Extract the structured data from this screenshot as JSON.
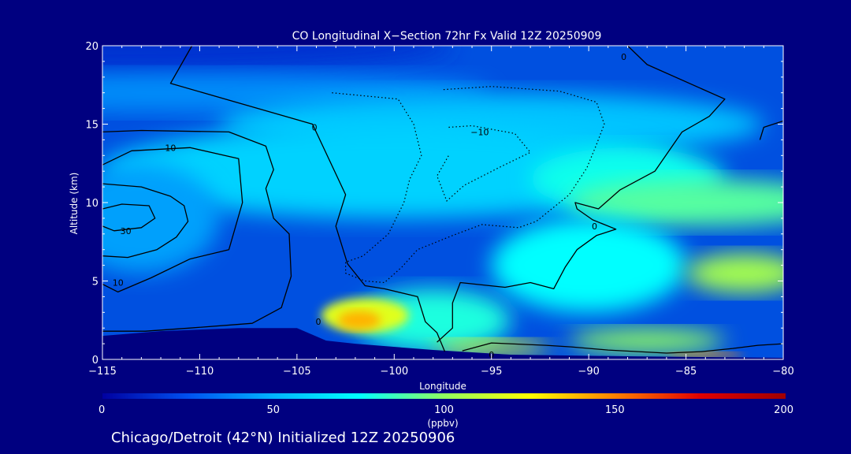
{
  "chart_data": {
    "type": "heatmap",
    "title": "CO Longitudinal X−Section 72hr  Fx Valid 12Z 20250909",
    "xlabel": "Longitude",
    "ylabel": "Altitude (km)",
    "xlim": [
      -115,
      -80
    ],
    "ylim": [
      0,
      20
    ],
    "x_ticks": [
      -115,
      -110,
      -105,
      -100,
      -95,
      -90,
      -85,
      -80
    ],
    "x_tick_labels": [
      "−115",
      "−110",
      "−105",
      "−100",
      "−95",
      "−90",
      "−85",
      "−80"
    ],
    "y_ticks": [
      0,
      5,
      10,
      15,
      20
    ],
    "y_tick_labels": [
      "0",
      "5",
      "10",
      "15",
      "20"
    ],
    "colorbar": {
      "min": 0,
      "max": 200,
      "ticks": [
        0,
        50,
        100,
        150,
        200
      ],
      "tick_labels": [
        "0",
        "50",
        "100",
        "150",
        "200"
      ],
      "unit_label": "(ppbv)",
      "colors": [
        "#0000a0",
        "#0050f0",
        "#00b4ff",
        "#00ffff",
        "#90ff60",
        "#ffff00",
        "#ff8000",
        "#e00000",
        "#a00000"
      ]
    },
    "background_color": "#000080",
    "field_base_color": "#0050e0",
    "terrain": [
      {
        "lon": -115,
        "alt": 1.5
      },
      {
        "lon": -112,
        "alt": 1.8
      },
      {
        "lon": -108,
        "alt": 2.0
      },
      {
        "lon": -105,
        "alt": 2.0
      },
      {
        "lon": -103.5,
        "alt": 1.2
      },
      {
        "lon": -102,
        "alt": 1.0
      },
      {
        "lon": -98,
        "alt": 0.6
      },
      {
        "lon": -94,
        "alt": 0.3
      },
      {
        "lon": -88,
        "alt": 0.2
      },
      {
        "lon": -84,
        "alt": 0.15
      },
      {
        "lon": -80,
        "alt": 0.1
      }
    ],
    "co_field": [
      {
        "lon": -115,
        "alt": 20.0,
        "w": 36,
        "h": 3.2,
        "value": 15
      },
      {
        "lon": -110,
        "alt": 17.0,
        "w": 30,
        "h": 2.5,
        "value": 40
      },
      {
        "lon": -95,
        "alt": 15.0,
        "w": 28,
        "h": 4.0,
        "value": 55
      },
      {
        "lon": -100,
        "alt": 12.0,
        "w": 30,
        "h": 6.0,
        "value": 60
      },
      {
        "lon": -113,
        "alt": 9.0,
        "w": 8,
        "h": 7.0,
        "value": 45
      },
      {
        "lon": -88,
        "alt": 11.5,
        "w": 10,
        "h": 4.0,
        "value": 78
      },
      {
        "lon": -84,
        "alt": 10.0,
        "w": 14,
        "h": 3.0,
        "value": 90
      },
      {
        "lon": -90,
        "alt": 6.0,
        "w": 10,
        "h": 6.0,
        "value": 75
      },
      {
        "lon": -82,
        "alt": 5.5,
        "w": 6,
        "h": 2.5,
        "value": 105
      },
      {
        "lon": -98,
        "alt": 2.5,
        "w": 8,
        "h": 4.0,
        "value": 80
      },
      {
        "lon": -101.5,
        "alt": 2.8,
        "w": 4.5,
        "h": 2.2,
        "value": 118
      },
      {
        "lon": -101.8,
        "alt": 2.5,
        "w": 2.2,
        "h": 1.2,
        "value": 140
      },
      {
        "lon": -95,
        "alt": 0.8,
        "w": 6,
        "h": 0.9,
        "value": 120
      },
      {
        "lon": -87,
        "alt": 1.2,
        "w": 8,
        "h": 1.5,
        "value": 100
      },
      {
        "lon": -84,
        "alt": 0.3,
        "w": 4,
        "h": 0.3,
        "value": 150
      }
    ],
    "contours": [
      {
        "level": 0,
        "style": "solid",
        "points": [
          [
            -110.4,
            20
          ],
          [
            -111.5,
            17.6
          ],
          [
            -104.2,
            15.0
          ],
          [
            -102.5,
            10.5
          ],
          [
            -103,
            8.5
          ],
          [
            -102.4,
            6.1
          ],
          [
            -101.5,
            4.7
          ],
          [
            -100.5,
            4.5
          ],
          [
            -98.8,
            4.0
          ],
          [
            -98.4,
            2.4
          ],
          [
            -97.8,
            1.7
          ],
          [
            -97.4,
            0.5
          ]
        ]
      },
      {
        "level": 0,
        "style": "solid",
        "points": [
          [
            -88,
            20
          ],
          [
            -87,
            18.8
          ],
          [
            -83,
            16.6
          ],
          [
            -83.8,
            15.5
          ],
          [
            -85.2,
            14.5
          ],
          [
            -86.6,
            12.0
          ],
          [
            -88.4,
            10.8
          ],
          [
            -89.5,
            9.6
          ],
          [
            -90.7,
            10.0
          ],
          [
            -90.6,
            9.6
          ],
          [
            -89.8,
            8.9
          ],
          [
            -88.6,
            8.3
          ],
          [
            -89.6,
            7.9
          ],
          [
            -90.6,
            7.0
          ],
          [
            -91.2,
            5.9
          ],
          [
            -91.8,
            4.5
          ],
          [
            -93.0,
            4.9
          ],
          [
            -94.3,
            4.6
          ],
          [
            -96.6,
            4.9
          ],
          [
            -97,
            3.6
          ],
          [
            -97,
            2.0
          ],
          [
            -97.8,
            1.1
          ]
        ]
      },
      {
        "level": 0,
        "style": "solid",
        "points": [
          [
            -80,
            15.2
          ],
          [
            -81,
            14.8
          ],
          [
            -81.2,
            14.0
          ]
        ]
      },
      {
        "level": 0,
        "style": "solid",
        "points": [
          [
            -96.5,
            0.55
          ],
          [
            -95.0,
            1.05
          ],
          [
            -92.2,
            0.9
          ],
          [
            -90.9,
            0.8
          ],
          [
            -89,
            0.6
          ],
          [
            -86,
            0.4
          ],
          [
            -84.2,
            0.5
          ],
          [
            -82.6,
            0.7
          ],
          [
            -81.3,
            0.9
          ],
          [
            -80,
            1.0
          ]
        ]
      },
      {
        "level": 10,
        "style": "solid",
        "points": [
          [
            -115,
            12.4
          ],
          [
            -113.5,
            13.3
          ],
          [
            -110.5,
            13.5
          ],
          [
            -108,
            12.8
          ],
          [
            -107.8,
            10.0
          ],
          [
            -108.5,
            7.0
          ],
          [
            -110.5,
            6.4
          ],
          [
            -112.5,
            5.2
          ],
          [
            -114.2,
            4.3
          ],
          [
            -115,
            4.8
          ]
        ]
      },
      {
        "level": 10,
        "style": "solid",
        "points": [
          [
            -115,
            14.5
          ],
          [
            -113,
            14.6
          ],
          [
            -108.5,
            14.5
          ],
          [
            -106.6,
            13.6
          ],
          [
            -106.2,
            12.1
          ],
          [
            -106.6,
            10.9
          ],
          [
            -106.2,
            9.0
          ],
          [
            -105.4,
            8.0
          ],
          [
            -105.3,
            5.3
          ],
          [
            -105.8,
            3.3
          ],
          [
            -107.3,
            2.3
          ],
          [
            -110.5,
            2.0
          ],
          [
            -112.8,
            1.8
          ],
          [
            -115,
            1.8
          ]
        ]
      },
      {
        "level": 20,
        "style": "solid",
        "points": [
          [
            -115,
            11.2
          ],
          [
            -113,
            11.0
          ],
          [
            -111.5,
            10.4
          ],
          [
            -110.8,
            9.8
          ],
          [
            -110.6,
            8.8
          ],
          [
            -111.2,
            7.8
          ],
          [
            -112.2,
            7.0
          ],
          [
            -113.7,
            6.5
          ],
          [
            -115,
            6.6
          ]
        ]
      },
      {
        "level": 30,
        "style": "solid",
        "points": [
          [
            -115,
            9.6
          ],
          [
            -114,
            9.9
          ],
          [
            -112.6,
            9.8
          ],
          [
            -112.3,
            9.0
          ],
          [
            -113,
            8.4
          ],
          [
            -114.4,
            8.2
          ],
          [
            -115,
            8.5
          ]
        ]
      },
      {
        "level": -10,
        "style": "dotted",
        "points": [
          [
            -103.2,
            17.0
          ],
          [
            -99.8,
            16.6
          ],
          [
            -99.0,
            15.0
          ],
          [
            -98.6,
            13.0
          ],
          [
            -99.2,
            11.5
          ],
          [
            -99.5,
            10.0
          ],
          [
            -100.3,
            8.0
          ],
          [
            -101.6,
            6.6
          ],
          [
            -102.5,
            6.2
          ],
          [
            -102.5,
            5.5
          ],
          [
            -101.5,
            5.0
          ],
          [
            -100.5,
            4.9
          ],
          [
            -99.6,
            5.9
          ],
          [
            -98.8,
            7.0
          ],
          [
            -97.0,
            7.9
          ],
          [
            -95.5,
            8.6
          ],
          [
            -93.6,
            8.4
          ],
          [
            -92.7,
            8.8
          ],
          [
            -91.0,
            10.5
          ],
          [
            -90.1,
            12.2
          ],
          [
            -89.6,
            13.7
          ],
          [
            -89.2,
            15.0
          ],
          [
            -89.6,
            16.4
          ],
          [
            -91.5,
            17.1
          ],
          [
            -95.0,
            17.4
          ],
          [
            -97.5,
            17.2
          ]
        ]
      },
      {
        "level": -20,
        "style": "dotted",
        "points": [
          [
            -97.2,
            14.8
          ],
          [
            -96,
            14.9
          ],
          [
            -93.8,
            14.4
          ],
          [
            -93.0,
            13.2
          ],
          [
            -94.5,
            12.3
          ],
          [
            -96.4,
            11.1
          ],
          [
            -97.3,
            10.1
          ],
          [
            -97.8,
            11.7
          ],
          [
            -97.2,
            13.0
          ]
        ]
      }
    ],
    "contour_labels": [
      {
        "text": "0",
        "lon": -104.1,
        "alt": 14.8
      },
      {
        "text": "−10",
        "lon": -95.6,
        "alt": 14.5
      },
      {
        "text": "10",
        "lon": -111.5,
        "alt": 13.5
      },
      {
        "text": "0",
        "lon": -89.7,
        "alt": 8.5
      },
      {
        "text": "30",
        "lon": -113.8,
        "alt": 8.2
      },
      {
        "text": "10",
        "lon": -114.2,
        "alt": 4.9
      },
      {
        "text": "0",
        "lon": -103.9,
        "alt": 2.4
      },
      {
        "text": "0",
        "lon": -95.0,
        "alt": 0.3
      },
      {
        "text": "0",
        "lon": -88.2,
        "alt": 19.3
      }
    ]
  },
  "footer": {
    "caption": "Chicago/Detroit (42°N) Initialized 12Z 20250906"
  }
}
